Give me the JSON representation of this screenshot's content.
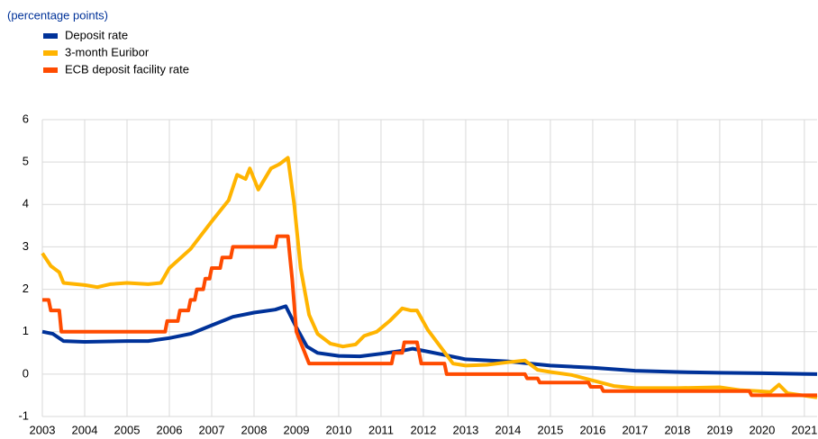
{
  "chart_data": {
    "type": "line",
    "subtitle": "(percentage points)",
    "xlim": [
      2003,
      2021.3
    ],
    "xticks": [
      2003,
      2004,
      2005,
      2006,
      2007,
      2008,
      2009,
      2010,
      2011,
      2012,
      2013,
      2014,
      2015,
      2016,
      2017,
      2018,
      2019,
      2020,
      2021
    ],
    "ylim": [
      -1,
      6
    ],
    "yticks": [
      -1,
      0,
      1,
      2,
      3,
      4,
      5,
      6
    ],
    "grid": true,
    "legend": "top-left",
    "series": [
      {
        "name": "Deposit rate",
        "color": "#003299",
        "x": [
          2003,
          2003.25,
          2003.5,
          2004,
          2005,
          2005.5,
          2006,
          2006.5,
          2007,
          2007.5,
          2008,
          2008.5,
          2008.75,
          2009,
          2009.25,
          2009.5,
          2010,
          2010.5,
          2011,
          2011.5,
          2011.75,
          2012,
          2012.5,
          2013,
          2014,
          2015,
          2016,
          2017,
          2018,
          2019,
          2020,
          2021.3
        ],
        "values": [
          1.0,
          0.95,
          0.78,
          0.76,
          0.78,
          0.78,
          0.85,
          0.95,
          1.15,
          1.35,
          1.45,
          1.52,
          1.6,
          1.1,
          0.65,
          0.5,
          0.43,
          0.42,
          0.48,
          0.55,
          0.6,
          0.55,
          0.45,
          0.35,
          0.3,
          0.2,
          0.15,
          0.08,
          0.05,
          0.03,
          0.02,
          0.0
        ]
      },
      {
        "name": "3-month Euribor",
        "color": "#ffb400",
        "x": [
          2003,
          2003.2,
          2003.4,
          2003.5,
          2004,
          2004.3,
          2004.6,
          2005,
          2005.5,
          2005.8,
          2006,
          2006.5,
          2007,
          2007.4,
          2007.6,
          2007.8,
          2007.9,
          2008.1,
          2008.4,
          2008.6,
          2008.8,
          2008.95,
          2009.1,
          2009.3,
          2009.5,
          2009.8,
          2010.1,
          2010.4,
          2010.6,
          2010.9,
          2011.2,
          2011.5,
          2011.7,
          2011.85,
          2012.1,
          2012.4,
          2012.7,
          2013,
          2013.5,
          2014,
          2014.4,
          2014.7,
          2015,
          2015.5,
          2016,
          2016.5,
          2017,
          2018,
          2019,
          2019.5,
          2019.9,
          2020.2,
          2020.4,
          2020.6,
          2021.3
        ],
        "values": [
          2.85,
          2.55,
          2.4,
          2.15,
          2.1,
          2.05,
          2.12,
          2.15,
          2.12,
          2.15,
          2.5,
          2.95,
          3.6,
          4.1,
          4.7,
          4.6,
          4.85,
          4.35,
          4.85,
          4.95,
          5.1,
          4.0,
          2.5,
          1.4,
          0.95,
          0.72,
          0.65,
          0.7,
          0.9,
          1.0,
          1.25,
          1.55,
          1.5,
          1.5,
          1.05,
          0.65,
          0.25,
          0.2,
          0.22,
          0.28,
          0.32,
          0.1,
          0.05,
          -0.02,
          -0.15,
          -0.28,
          -0.33,
          -0.33,
          -0.31,
          -0.38,
          -0.4,
          -0.42,
          -0.25,
          -0.45,
          -0.55
        ]
      },
      {
        "name": "ECB deposit facility rate",
        "color": "#ff4b00",
        "x": [
          2003,
          2003.15,
          2003.2,
          2003.4,
          2003.45,
          2005.9,
          2005.95,
          2006.2,
          2006.25,
          2006.45,
          2006.5,
          2006.6,
          2006.65,
          2006.8,
          2006.85,
          2006.95,
          2007.0,
          2007.2,
          2007.25,
          2007.45,
          2007.5,
          2008.5,
          2008.55,
          2008.8,
          2008.85,
          2008.9,
          2009.0,
          2009.2,
          2009.3,
          2011.25,
          2011.3,
          2011.5,
          2011.55,
          2011.85,
          2011.9,
          2011.95,
          2012.5,
          2012.55,
          2014.4,
          2014.45,
          2014.7,
          2014.75,
          2015.9,
          2015.95,
          2016.2,
          2016.25,
          2019.7,
          2019.75,
          2021.3
        ],
        "values": [
          1.75,
          1.75,
          1.5,
          1.5,
          1.0,
          1.0,
          1.25,
          1.25,
          1.5,
          1.5,
          1.75,
          1.75,
          2.0,
          2.0,
          2.25,
          2.25,
          2.5,
          2.5,
          2.75,
          2.75,
          3.0,
          3.0,
          3.25,
          3.25,
          2.75,
          2.25,
          1.0,
          0.5,
          0.25,
          0.25,
          0.5,
          0.5,
          0.75,
          0.75,
          0.5,
          0.25,
          0.25,
          0.0,
          0.0,
          -0.1,
          -0.1,
          -0.2,
          -0.2,
          -0.3,
          -0.3,
          -0.4,
          -0.4,
          -0.5,
          -0.5
        ]
      }
    ]
  }
}
